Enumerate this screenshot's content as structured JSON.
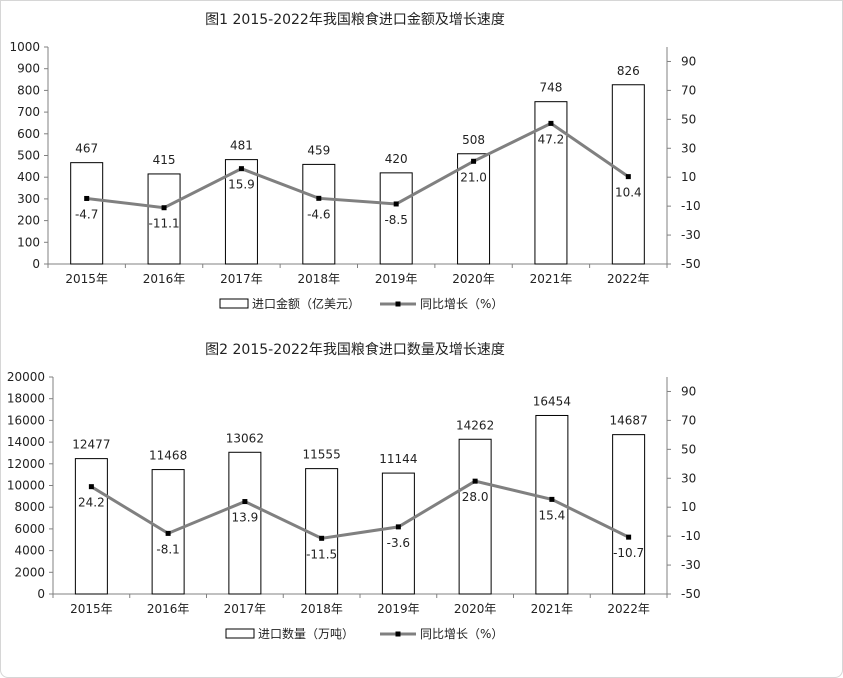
{
  "chart_data": [
    {
      "type": "bar",
      "title": "图1  2015-2022年我国粮食进口金额及增长速度",
      "categories": [
        "2015年",
        "2016年",
        "2017年",
        "2018年",
        "2019年",
        "2020年",
        "2021年",
        "2022年"
      ],
      "ylim": [
        0,
        1000
      ],
      "yticks": [
        0,
        100,
        200,
        300,
        400,
        500,
        600,
        700,
        800,
        900,
        1000
      ],
      "y2lim": [
        -50,
        100
      ],
      "y2ticks": [
        -50,
        -30,
        -10,
        10,
        30,
        50,
        70,
        90
      ],
      "series": [
        {
          "name": "进口金额（亿美元）",
          "type": "bar",
          "axis": "left",
          "values": [
            467,
            415,
            481,
            459,
            420,
            508,
            748,
            826
          ],
          "labels": [
            "467",
            "415",
            "481",
            "459",
            "420",
            "508",
            "748",
            "826"
          ]
        },
        {
          "name": "同比增长（%）",
          "type": "line",
          "axis": "right",
          "values": [
            -4.7,
            -11.1,
            15.9,
            -4.6,
            -8.5,
            21.0,
            47.2,
            10.4
          ],
          "labels": [
            "-4.7",
            "-11.1",
            "15.9",
            "-4.6",
            "-8.5",
            "21.0",
            "47.2",
            "10.4"
          ]
        }
      ],
      "legend": "bottom",
      "grid": false
    },
    {
      "type": "bar",
      "title": "图2  2015-2022年我国粮食进口数量及增长速度",
      "categories": [
        "2015年",
        "2016年",
        "2017年",
        "2018年",
        "2019年",
        "2020年",
        "2021年",
        "2022年"
      ],
      "ylim": [
        0,
        20000
      ],
      "yticks": [
        0,
        2000,
        4000,
        6000,
        8000,
        10000,
        12000,
        14000,
        16000,
        18000,
        20000
      ],
      "y2lim": [
        -50,
        100
      ],
      "y2ticks": [
        -50,
        -30,
        -10,
        10,
        30,
        50,
        70,
        90
      ],
      "series": [
        {
          "name": "进口数量（万吨）",
          "type": "bar",
          "axis": "left",
          "values": [
            12477,
            11468,
            13062,
            11555,
            11144,
            14262,
            16454,
            14687
          ],
          "labels": [
            "12477",
            "11468",
            "13062",
            "11555",
            "11144",
            "14262",
            "16454",
            "14687"
          ]
        },
        {
          "name": "同比增长（%）",
          "type": "line",
          "axis": "right",
          "values": [
            24.2,
            -8.1,
            13.9,
            -11.5,
            -3.6,
            28.0,
            15.4,
            -10.7
          ],
          "labels": [
            "24.2",
            "-8.1",
            "13.9",
            "-11.5",
            "-3.6",
            "28.0",
            "15.4",
            "-10.7"
          ]
        }
      ],
      "legend": "bottom",
      "grid": false
    }
  ],
  "colors": {
    "bar_fill": "#ffffff",
    "bar_stroke": "#000000",
    "line": "#808080",
    "marker": "#000000",
    "axis": "#808080"
  }
}
